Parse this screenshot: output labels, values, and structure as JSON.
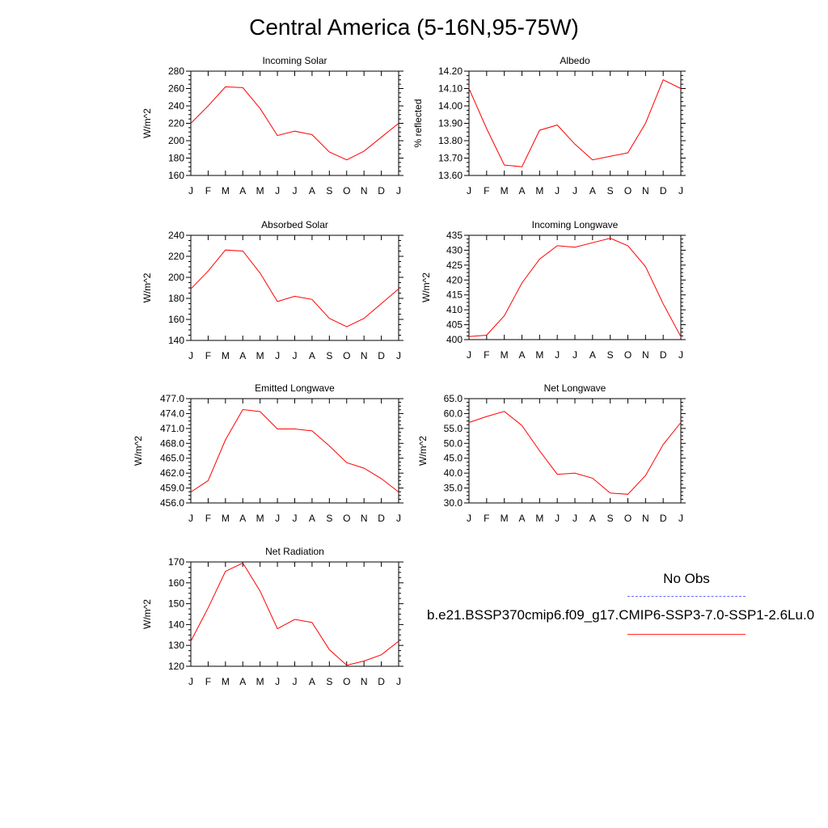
{
  "title": "Central America (5-16N,95-75W)",
  "legend": {
    "obs_label": "No Obs",
    "run_label": "b.e21.BSSP370cmip6.f09_g17.CMIP6-SSP3-7.0-SSP1-2.6Lu.0",
    "obs_color": "#6a6aff",
    "run_color": "#ff0000"
  },
  "chart_data": [
    {
      "type": "line",
      "title": "Incoming Solar",
      "ylabel": "W/m^2",
      "categories": [
        "J",
        "F",
        "M",
        "A",
        "M",
        "J",
        "J",
        "A",
        "S",
        "O",
        "N",
        "D",
        "J"
      ],
      "yticks": [
        "160",
        "180",
        "200",
        "220",
        "240",
        "260",
        "280"
      ],
      "ylim": [
        160,
        280
      ],
      "series": [
        {
          "values": [
            220,
            240,
            262,
            261,
            237,
            206,
            211,
            207,
            187,
            178,
            188,
            204,
            220
          ]
        }
      ]
    },
    {
      "type": "line",
      "title": "Albedo",
      "ylabel": "% reflected",
      "categories": [
        "J",
        "F",
        "M",
        "A",
        "M",
        "J",
        "J",
        "A",
        "S",
        "O",
        "N",
        "D",
        "J"
      ],
      "yticks": [
        "13.60",
        "13.70",
        "13.80",
        "13.90",
        "14.00",
        "14.10",
        "14.20"
      ],
      "ylim": [
        13.6,
        14.2
      ],
      "series": [
        {
          "values": [
            14.1,
            13.87,
            13.66,
            13.65,
            13.86,
            13.89,
            13.78,
            13.69,
            13.71,
            13.73,
            13.9,
            14.15,
            14.1
          ]
        }
      ]
    },
    {
      "type": "line",
      "title": "Absorbed Solar",
      "ylabel": "W/m^2",
      "categories": [
        "J",
        "F",
        "M",
        "A",
        "M",
        "J",
        "J",
        "A",
        "S",
        "O",
        "N",
        "D",
        "J"
      ],
      "yticks": [
        "140",
        "160",
        "180",
        "200",
        "220",
        "240"
      ],
      "ylim": [
        140,
        240
      ],
      "series": [
        {
          "values": [
            189,
            206,
            226,
            225,
            204,
            177,
            182,
            179,
            161,
            153,
            161,
            175,
            189
          ]
        }
      ]
    },
    {
      "type": "line",
      "title": "Incoming Longwave",
      "ylabel": "W/m^2",
      "categories": [
        "J",
        "F",
        "M",
        "A",
        "M",
        "J",
        "J",
        "A",
        "S",
        "O",
        "N",
        "D",
        "J"
      ],
      "yticks": [
        "400",
        "405",
        "410",
        "415",
        "420",
        "425",
        "430",
        "435"
      ],
      "ylim": [
        400,
        435
      ],
      "series": [
        {
          "values": [
            401,
            401.5,
            408,
            419,
            427,
            431.5,
            431,
            432.5,
            434,
            431.5,
            424.5,
            412,
            401
          ]
        }
      ]
    },
    {
      "type": "line",
      "title": "Emitted Longwave",
      "ylabel": "W/m^2",
      "categories": [
        "J",
        "F",
        "M",
        "A",
        "M",
        "J",
        "J",
        "A",
        "S",
        "O",
        "N",
        "D",
        "J"
      ],
      "yticks": [
        "456.0",
        "459.0",
        "462.0",
        "465.0",
        "468.0",
        "471.0",
        "474.0",
        "477.0"
      ],
      "ylim": [
        456,
        477
      ],
      "series": [
        {
          "values": [
            458.2,
            460.5,
            468.7,
            474.8,
            474.4,
            470.9,
            470.9,
            470.5,
            467.5,
            464.1,
            463.0,
            460.9,
            458.2
          ]
        }
      ]
    },
    {
      "type": "line",
      "title": "Net Longwave",
      "ylabel": "W/m^2",
      "categories": [
        "J",
        "F",
        "M",
        "A",
        "M",
        "J",
        "J",
        "A",
        "S",
        "O",
        "N",
        "D",
        "J"
      ],
      "yticks": [
        "30.0",
        "35.0",
        "40.0",
        "45.0",
        "50.0",
        "55.0",
        "60.0",
        "65.0"
      ],
      "ylim": [
        30,
        65
      ],
      "series": [
        {
          "values": [
            57.0,
            59.0,
            60.7,
            56.0,
            47.5,
            39.6,
            40.0,
            38.3,
            33.3,
            32.9,
            39.2,
            49.6,
            57.0
          ]
        }
      ]
    },
    {
      "type": "line",
      "title": "Net Radiation",
      "ylabel": "W/m^2",
      "categories": [
        "J",
        "F",
        "M",
        "A",
        "M",
        "J",
        "J",
        "A",
        "S",
        "O",
        "N",
        "D",
        "J"
      ],
      "yticks": [
        "120",
        "130",
        "140",
        "150",
        "160",
        "170"
      ],
      "ylim": [
        120,
        170
      ],
      "series": [
        {
          "values": [
            132,
            148,
            165.5,
            169.5,
            156,
            138,
            142.5,
            141,
            128,
            120.5,
            122.5,
            125.5,
            132
          ]
        }
      ]
    }
  ]
}
